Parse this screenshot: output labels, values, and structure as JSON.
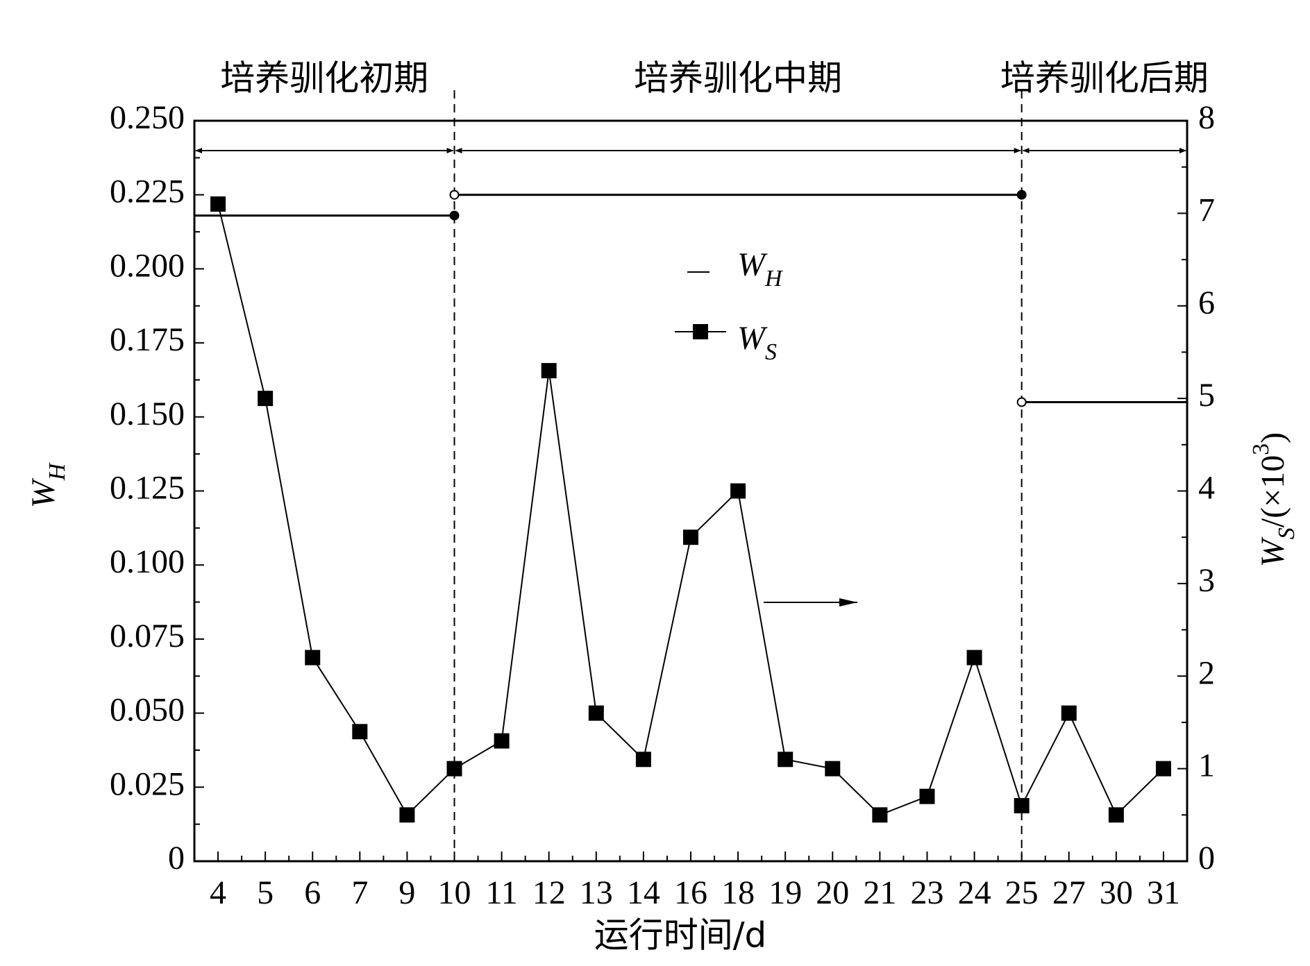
{
  "chart_data": {
    "type": "line",
    "categories": [
      "4",
      "5",
      "6",
      "7",
      "9",
      "10",
      "11",
      "12",
      "13",
      "14",
      "16",
      "18",
      "19",
      "20",
      "21",
      "23",
      "24",
      "25",
      "27",
      "30",
      "31"
    ],
    "series": [
      {
        "name": "W",
        "name_sub": "S",
        "color": "#000000",
        "axis": "y2",
        "values": [
          7.1,
          5.0,
          2.2,
          1.4,
          0.5,
          1.0,
          1.3,
          5.3,
          1.6,
          1.1,
          3.5,
          4.0,
          1.1,
          1.0,
          0.5,
          0.7,
          2.2,
          0.6,
          1.6,
          0.5,
          1.0
        ]
      }
    ],
    "stage_series": {
      "name": "W",
      "name_sub": "H",
      "color": "#000000"
    },
    "stages": [
      {
        "label": "培养驯化初期",
        "value": 0.218
      },
      {
        "label": "培养驯化中期",
        "value": 0.225
      },
      {
        "label": "培养驯化后期",
        "value": 0.155
      }
    ],
    "stage_bounds": [
      "10",
      "25"
    ],
    "xlabel": "运行时间/d",
    "ylabel": {
      "main": "W",
      "sub": "H"
    },
    "y2label": {
      "main": "W",
      "sub": "S",
      "rest": "/(×10",
      "sup": "3",
      "end": ")"
    },
    "ylim": [
      0,
      0.25
    ],
    "yticks": [
      0,
      0.025,
      {
        "value": 0.05,
        "label": "0.050"
      },
      0.075,
      {
        "value": 0.1,
        "label": "0.100"
      },
      0.125,
      {
        "value": 0.15,
        "label": "0.150"
      },
      0.175,
      {
        "value": 0.2,
        "label": "0.200"
      },
      0.225,
      {
        "value": 0.25,
        "label": "0.250"
      }
    ],
    "y2lim": [
      0,
      8
    ],
    "y2ticks": [
      0,
      1,
      2,
      3,
      4,
      5,
      6,
      7,
      8
    ]
  }
}
